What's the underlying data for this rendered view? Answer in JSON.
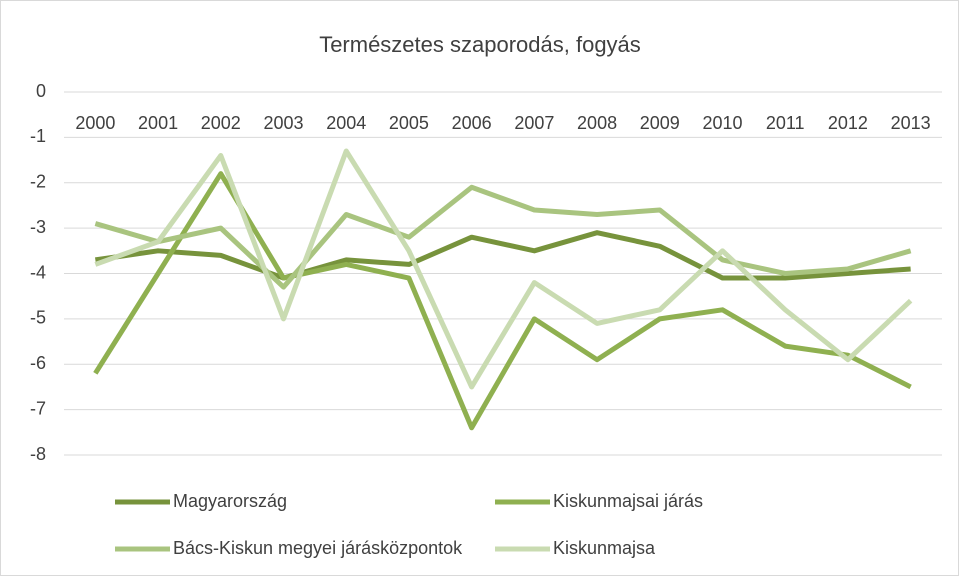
{
  "chart_data": {
    "type": "line",
    "title": "Természetes szaporodás, fogyás",
    "categories": [
      "2000",
      "2001",
      "2002",
      "2003",
      "2004",
      "2005",
      "2006",
      "2007",
      "2008",
      "2009",
      "2010",
      "2011",
      "2012",
      "2013"
    ],
    "series": [
      {
        "name": "Magyarország",
        "color": "#77933c",
        "values": [
          -3.7,
          -3.5,
          -3.6,
          -4.1,
          -3.7,
          -3.8,
          -3.2,
          -3.5,
          -3.1,
          -3.4,
          -4.1,
          -4.1,
          -4.0,
          -3.9
        ]
      },
      {
        "name": "Kiskunmajsai járás",
        "color": "#8fb050",
        "values": [
          -6.2,
          -4.0,
          -1.8,
          -4.1,
          -3.8,
          -4.1,
          -7.4,
          -5.0,
          -5.9,
          -5.0,
          -4.8,
          -5.6,
          -5.8,
          -6.5
        ]
      },
      {
        "name": "Bács-Kiskun megyei járásközpontok",
        "color": "#a9c47f",
        "values": [
          -2.9,
          -3.3,
          -3.0,
          -4.3,
          -2.7,
          -3.2,
          -2.1,
          -2.6,
          -2.7,
          -2.6,
          -3.7,
          -4.0,
          -3.9,
          -3.5
        ]
      },
      {
        "name": "Kiskunmajsa",
        "color": "#c9dbb1",
        "values": [
          -3.8,
          -3.3,
          -1.4,
          -5.0,
          -1.3,
          -3.5,
          -6.5,
          -4.2,
          -5.1,
          -4.8,
          -3.5,
          -4.8,
          -5.9,
          -4.6
        ]
      }
    ],
    "ylim": [
      -8,
      0
    ],
    "yticks": [
      0,
      -1,
      -2,
      -3,
      -4,
      -5,
      -6,
      -7,
      -8
    ],
    "grid": true,
    "legend": "bottom"
  }
}
